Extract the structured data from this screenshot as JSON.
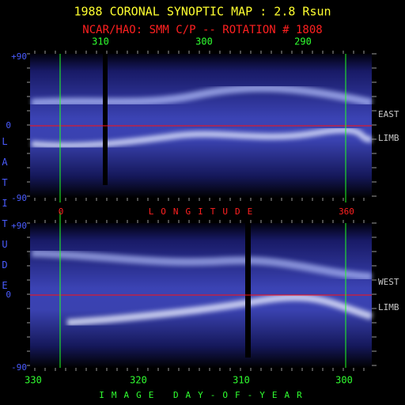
{
  "title": "1988 CORONAL SYNOPTIC MAP : 2.8 Rsun",
  "subtitle": "NCAR/HAO: SMM C/P -- ROTATION # 1808",
  "top_panel": {
    "top_axis_labels": [
      "310",
      "300",
      "290"
    ],
    "lat_labels": [
      "+90",
      "0",
      "-90"
    ],
    "side_labels": [
      "EAST",
      "LIMB"
    ]
  },
  "middle_axis": {
    "labels": [
      "0",
      "360"
    ],
    "title": "LONGITUDE"
  },
  "bottom_panel": {
    "lat_labels": [
      "+90",
      "0",
      "-90"
    ],
    "side_labels": [
      "WEST",
      "LIMB"
    ]
  },
  "bottom_axis": {
    "labels": [
      "330",
      "320",
      "310",
      "300"
    ],
    "title": "IMAGE DAY-OF-YEAR"
  },
  "y_axis_title": "LATITUDE"
}
